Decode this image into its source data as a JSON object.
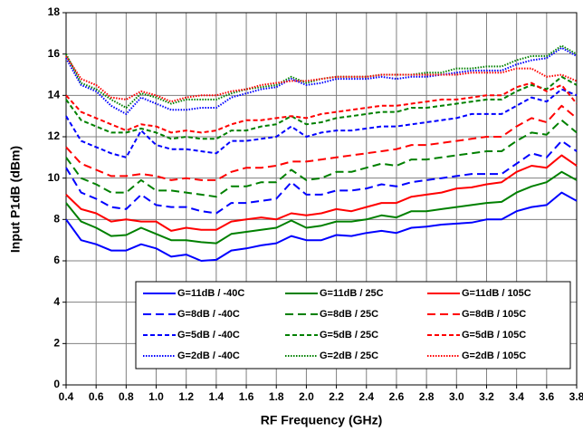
{
  "chart_data": {
    "type": "line",
    "x_label": "RF Frequency (GHz)",
    "y_label": "Input P1dB (dBm)",
    "x": [
      0.4,
      0.5,
      0.6,
      0.7,
      0.8,
      0.9,
      1.0,
      1.1,
      1.2,
      1.3,
      1.4,
      1.5,
      1.6,
      1.7,
      1.8,
      1.9,
      2.0,
      2.1,
      2.2,
      2.3,
      2.4,
      2.5,
      2.6,
      2.7,
      2.8,
      2.9,
      3.0,
      3.1,
      3.2,
      3.3,
      3.4,
      3.5,
      3.6,
      3.7,
      3.8
    ],
    "xlim": [
      0.4,
      3.8
    ],
    "xticks": [
      0.4,
      0.6,
      0.8,
      {
        "value": 1,
        "label": "1.0"
      },
      1.2,
      1.4,
      1.6,
      1.8,
      {
        "value": 2,
        "label": "2.0"
      },
      2.2,
      2.4,
      2.6,
      2.8,
      {
        "value": 3,
        "label": "3.0"
      },
      3.2,
      3.4,
      3.6,
      3.8
    ],
    "ylim": [
      0,
      18
    ],
    "yticks": [
      0,
      2,
      4,
      6,
      8,
      10,
      12,
      14,
      16,
      18
    ],
    "grid": true,
    "series": [
      {
        "name": "G=11dB / -40C",
        "color": "#0000ff",
        "dash": "solid",
        "values": [
          8.0,
          7.0,
          6.8,
          6.5,
          6.5,
          6.8,
          6.6,
          6.2,
          6.3,
          6.0,
          6.05,
          6.5,
          6.6,
          6.75,
          6.85,
          7.2,
          7.0,
          7.0,
          7.25,
          7.2,
          7.35,
          7.45,
          7.35,
          7.6,
          7.65,
          7.75,
          7.8,
          7.85,
          8.0,
          8.0,
          8.4,
          8.6,
          8.7,
          9.3,
          8.9
        ]
      },
      {
        "name": "G=11dB / 25C",
        "color": "#008000",
        "dash": "solid",
        "values": [
          8.8,
          7.9,
          7.6,
          7.2,
          7.25,
          7.6,
          7.3,
          7.0,
          7.0,
          6.9,
          6.85,
          7.3,
          7.4,
          7.5,
          7.6,
          7.95,
          7.6,
          7.7,
          7.9,
          7.9,
          8.0,
          8.2,
          8.1,
          8.4,
          8.4,
          8.5,
          8.6,
          8.7,
          8.8,
          8.85,
          9.3,
          9.6,
          9.8,
          10.3,
          9.9
        ]
      },
      {
        "name": "G=11dB / 105C",
        "color": "#ff0000",
        "dash": "solid",
        "values": [
          9.2,
          8.5,
          8.3,
          7.9,
          8.0,
          7.9,
          7.9,
          7.45,
          7.6,
          7.5,
          7.5,
          7.9,
          8.0,
          8.1,
          8.0,
          8.3,
          8.2,
          8.3,
          8.5,
          8.4,
          8.6,
          8.8,
          8.8,
          9.1,
          9.2,
          9.3,
          9.5,
          9.55,
          9.7,
          9.8,
          10.3,
          10.6,
          10.5,
          11.1,
          10.6
        ]
      },
      {
        "name": "G=8dB / -40C",
        "color": "#0000ff",
        "dash": "dashed",
        "values": [
          10.5,
          9.3,
          9.0,
          8.6,
          8.5,
          9.2,
          8.7,
          8.6,
          8.6,
          8.4,
          8.3,
          8.8,
          8.8,
          8.9,
          9.0,
          9.8,
          9.2,
          9.2,
          9.4,
          9.4,
          9.5,
          9.7,
          9.6,
          9.8,
          9.9,
          10.0,
          10.1,
          10.2,
          10.2,
          10.2,
          10.7,
          11.2,
          11.0,
          11.8,
          11.3
        ]
      },
      {
        "name": "G=8dB / 25C",
        "color": "#008000",
        "dash": "dashed",
        "values": [
          11.0,
          10.0,
          9.7,
          9.3,
          9.3,
          9.9,
          9.4,
          9.4,
          9.3,
          9.2,
          9.1,
          9.6,
          9.6,
          9.8,
          9.8,
          10.4,
          9.9,
          10.0,
          10.3,
          10.3,
          10.5,
          10.7,
          10.6,
          10.9,
          10.9,
          11.0,
          11.1,
          11.2,
          11.3,
          11.3,
          11.8,
          12.2,
          12.1,
          12.8,
          12.2
        ]
      },
      {
        "name": "G=8dB / 105C",
        "color": "#ff0000",
        "dash": "dashed",
        "values": [
          11.5,
          10.7,
          10.4,
          10.1,
          10.1,
          10.2,
          10.1,
          9.9,
          10.0,
          9.9,
          9.9,
          10.3,
          10.5,
          10.5,
          10.6,
          10.8,
          10.8,
          10.9,
          11.0,
          11.1,
          11.2,
          11.3,
          11.4,
          11.6,
          11.6,
          11.7,
          11.8,
          11.9,
          12.0,
          12.0,
          12.5,
          12.9,
          12.7,
          13.5,
          12.9
        ]
      },
      {
        "name": "G=5dB / -40C",
        "color": "#0000ff",
        "dash": "short-dash",
        "values": [
          13.0,
          11.8,
          11.5,
          11.2,
          11.0,
          12.3,
          11.6,
          11.4,
          11.4,
          11.3,
          11.2,
          11.8,
          11.8,
          11.9,
          12.0,
          12.5,
          12.0,
          12.2,
          12.3,
          12.3,
          12.4,
          12.5,
          12.5,
          12.6,
          12.7,
          12.8,
          12.9,
          13.1,
          13.1,
          13.1,
          13.5,
          13.9,
          13.7,
          14.3,
          14.0
        ]
      },
      {
        "name": "G=5dB / 25C",
        "color": "#008000",
        "dash": "short-dash",
        "values": [
          13.8,
          12.8,
          12.5,
          12.2,
          12.2,
          12.4,
          12.2,
          11.9,
          12.0,
          11.9,
          11.9,
          12.3,
          12.3,
          12.5,
          12.6,
          13.0,
          12.6,
          12.7,
          12.9,
          13.0,
          13.1,
          13.2,
          13.2,
          13.4,
          13.4,
          13.5,
          13.6,
          13.7,
          13.8,
          13.8,
          14.2,
          14.5,
          14.3,
          14.9,
          14.5
        ]
      },
      {
        "name": "G=5dB / 105C",
        "color": "#ff0000",
        "dash": "short-dash",
        "values": [
          14.0,
          13.2,
          12.9,
          12.6,
          12.3,
          12.6,
          12.5,
          12.2,
          12.3,
          12.2,
          12.3,
          12.6,
          12.8,
          12.8,
          12.9,
          13.0,
          12.9,
          13.1,
          13.2,
          13.3,
          13.4,
          13.5,
          13.5,
          13.6,
          13.7,
          13.8,
          13.8,
          13.9,
          14.0,
          14.0,
          14.4,
          14.6,
          14.2,
          14.5,
          13.6
        ]
      },
      {
        "name": "G=2dB / -40C",
        "color": "#0000ff",
        "dash": "dotted",
        "values": [
          15.8,
          14.5,
          14.2,
          13.5,
          13.1,
          13.9,
          13.6,
          13.3,
          13.3,
          13.4,
          13.4,
          13.9,
          14.1,
          14.3,
          14.4,
          14.8,
          14.5,
          14.6,
          14.8,
          14.8,
          14.8,
          14.9,
          14.8,
          14.9,
          14.9,
          15.0,
          15.1,
          15.2,
          15.2,
          15.2,
          15.5,
          15.7,
          15.8,
          16.3,
          15.9
        ]
      },
      {
        "name": "G=2dB / 25C",
        "color": "#008000",
        "dash": "dotted",
        "values": [
          16.0,
          14.6,
          14.3,
          13.8,
          13.4,
          14.1,
          13.9,
          13.6,
          13.8,
          13.8,
          13.8,
          14.1,
          14.3,
          14.4,
          14.5,
          14.9,
          14.6,
          14.8,
          14.9,
          14.9,
          14.9,
          15.0,
          15.0,
          15.0,
          15.1,
          15.1,
          15.3,
          15.3,
          15.4,
          15.4,
          15.7,
          15.9,
          15.9,
          16.4,
          16.0
        ]
      },
      {
        "name": "G=2dB / 105C",
        "color": "#ff0000",
        "dash": "dotted",
        "values": [
          15.9,
          14.8,
          14.5,
          13.9,
          13.8,
          14.2,
          14.0,
          13.7,
          13.9,
          14.0,
          14.0,
          14.2,
          14.3,
          14.5,
          14.6,
          14.7,
          14.7,
          14.8,
          14.9,
          14.9,
          14.9,
          15.0,
          15.0,
          15.0,
          15.0,
          15.0,
          15.0,
          15.1,
          15.1,
          15.1,
          15.3,
          15.3,
          14.9,
          15.0,
          14.7
        ]
      }
    ]
  }
}
